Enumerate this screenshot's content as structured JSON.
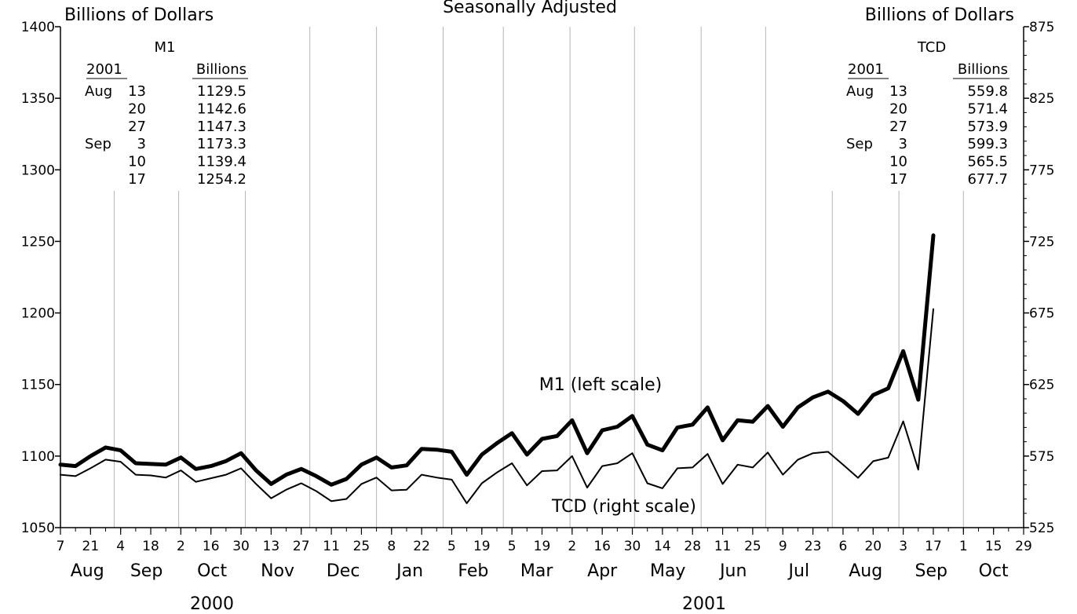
{
  "chart_data": {
    "type": "line",
    "title": "Seasonally Adjusted",
    "left_axis_label": "Billions of Dollars",
    "right_axis_label": "Billions of Dollars",
    "left_ylim": [
      1050,
      1400
    ],
    "right_ylim": [
      525,
      875
    ],
    "left_ticks": [
      "1050",
      "1100",
      "1150",
      "1200",
      "1250",
      "1300",
      "1350",
      "1400"
    ],
    "right_ticks": [
      "525",
      "575",
      "625",
      "675",
      "725",
      "775",
      "825",
      "875"
    ],
    "grid": "vertical",
    "x_start": "2000-08-07",
    "x_end": "2001-10-29",
    "x_day_labels": [
      "7",
      "21",
      "4",
      "18",
      "2",
      "16",
      "30",
      "13",
      "27",
      "11",
      "25",
      "8",
      "22",
      "5",
      "19",
      "5",
      "19",
      "2",
      "16",
      "30",
      "14",
      "28",
      "11",
      "25",
      "9",
      "23",
      "6",
      "20",
      "3",
      "17",
      "1",
      "15",
      "29"
    ],
    "x_month_labels": [
      "Aug",
      "Sep",
      "Oct",
      "Nov",
      "Dec",
      "Jan",
      "Feb",
      "Mar",
      "Apr",
      "May",
      "Jun",
      "Jul",
      "Aug",
      "Sep",
      "Oct"
    ],
    "x_year_labels": [
      "2000",
      "2001"
    ],
    "x": [
      "2000-08-07",
      "2000-08-14",
      "2000-08-21",
      "2000-08-28",
      "2000-09-04",
      "2000-09-11",
      "2000-09-18",
      "2000-09-25",
      "2000-10-02",
      "2000-10-09",
      "2000-10-16",
      "2000-10-23",
      "2000-10-30",
      "2000-11-06",
      "2000-11-13",
      "2000-11-20",
      "2000-11-27",
      "2000-12-04",
      "2000-12-11",
      "2000-12-18",
      "2000-12-25",
      "2001-01-01",
      "2001-01-08",
      "2001-01-15",
      "2001-01-22",
      "2001-01-29",
      "2001-02-05",
      "2001-02-12",
      "2001-02-19",
      "2001-02-26",
      "2001-03-05",
      "2001-03-12",
      "2001-03-19",
      "2001-03-26",
      "2001-04-02",
      "2001-04-09",
      "2001-04-16",
      "2001-04-23",
      "2001-04-30",
      "2001-05-07",
      "2001-05-14",
      "2001-05-21",
      "2001-05-28",
      "2001-06-04",
      "2001-06-11",
      "2001-06-18",
      "2001-06-25",
      "2001-07-02",
      "2001-07-09",
      "2001-07-16",
      "2001-07-23",
      "2001-07-30",
      "2001-08-06",
      "2001-08-13",
      "2001-08-20",
      "2001-08-27",
      "2001-09-03",
      "2001-09-10",
      "2001-09-17"
    ],
    "series": [
      {
        "name": "M1 (left scale)",
        "axis": "left",
        "values": [
          1094,
          1093,
          1100,
          1106,
          1104,
          1095,
          1094.5,
          1094,
          1099,
          1091,
          1093,
          1096.5,
          1102,
          1090,
          1080.5,
          1087,
          1091,
          1086,
          1080,
          1084,
          1094,
          1099,
          1092,
          1093.5,
          1105,
          1104.5,
          1103,
          1087,
          1101,
          1109,
          1116,
          1101,
          1112,
          1114,
          1125,
          1102,
          1118,
          1120.5,
          1128,
          1108,
          1104,
          1120,
          1122,
          1134,
          1111,
          1125,
          1124,
          1135,
          1120.5,
          1134,
          1141,
          1145,
          1138.5,
          1129.5,
          1142.6,
          1147.3,
          1173.3,
          1139.4,
          1254.2
        ]
      },
      {
        "name": "TCD (right scale)",
        "axis": "right",
        "values": [
          562,
          561,
          566.5,
          572.5,
          571,
          562,
          561.5,
          560,
          565,
          557,
          559.5,
          562,
          566.5,
          555.5,
          545.5,
          551.5,
          556,
          550.5,
          543.5,
          545,
          555.5,
          560,
          551,
          551.5,
          562,
          560,
          558.5,
          542,
          556,
          563.5,
          570,
          554.5,
          564.5,
          565,
          575,
          553,
          568,
          570,
          577,
          556,
          552.5,
          566.5,
          567,
          576.5,
          555.5,
          569,
          567,
          577.5,
          562,
          572.5,
          577,
          578,
          569,
          559.8,
          571.4,
          573.9,
          599.3,
          565.5,
          677.7
        ]
      }
    ],
    "inset_tables": [
      {
        "name": "M1",
        "col_date": "2001",
        "col_value": "Billions",
        "rows": [
          {
            "month": "Aug",
            "day": "13",
            "value": "1129.5"
          },
          {
            "month": "",
            "day": "20",
            "value": "1142.6"
          },
          {
            "month": "",
            "day": "27",
            "value": "1147.3"
          },
          {
            "month": "Sep",
            "day": "3",
            "value": "1173.3"
          },
          {
            "month": "",
            "day": "10",
            "value": "1139.4"
          },
          {
            "month": "",
            "day": "17",
            "value": "1254.2"
          }
        ]
      },
      {
        "name": "TCD",
        "col_date": "2001",
        "col_value": "Billions",
        "rows": [
          {
            "month": "Aug",
            "day": "13",
            "value": "559.8"
          },
          {
            "month": "",
            "day": "20",
            "value": "571.4"
          },
          {
            "month": "",
            "day": "27",
            "value": "573.9"
          },
          {
            "month": "Sep",
            "day": "3",
            "value": "599.3"
          },
          {
            "month": "",
            "day": "10",
            "value": "565.5"
          },
          {
            "month": "",
            "day": "17",
            "value": "677.7"
          }
        ]
      }
    ]
  }
}
